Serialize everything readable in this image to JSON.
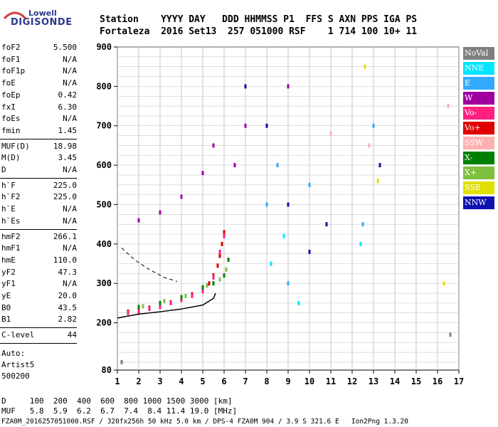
{
  "logo": {
    "line1": "Lowell",
    "line2": "DIGISONDE"
  },
  "header": {
    "line1": "Station    YYYY DAY   DDD HHMMSS P1  FFS S AXN PPS IGA PS",
    "line2": "Fortaleza  2016 Set13  257 051000 RSF    1 714 100 10+ 11"
  },
  "params_a": [
    {
      "k": "foF2",
      "v": "5.500"
    },
    {
      "k": "foF1",
      "v": "N/A"
    },
    {
      "k": "foF1p",
      "v": "N/A"
    },
    {
      "k": "foE",
      "v": "N/A"
    },
    {
      "k": "foEp",
      "v": "0.42"
    },
    {
      "k": "fxI",
      "v": "6.30"
    },
    {
      "k": "foEs",
      "v": "N/A"
    },
    {
      "k": "fmin",
      "v": "1.45"
    }
  ],
  "params_b": [
    {
      "k": "MUF(D)",
      "v": "18.98"
    },
    {
      "k": "M(D)",
      "v": "3.45"
    },
    {
      "k": "D",
      "v": "N/A"
    }
  ],
  "params_c": [
    {
      "k": "h`F",
      "v": "225.0"
    },
    {
      "k": "h`F2",
      "v": "225.0"
    },
    {
      "k": "h`E",
      "v": "N/A"
    },
    {
      "k": "h`Es",
      "v": "N/A"
    }
  ],
  "params_d": [
    {
      "k": "hmF2",
      "v": "266.1"
    },
    {
      "k": "hmF1",
      "v": "N/A"
    },
    {
      "k": "hmE",
      "v": "110.0"
    },
    {
      "k": "yF2",
      "v": "47.3"
    },
    {
      "k": "yF1",
      "v": "N/A"
    },
    {
      "k": "yE",
      "v": "20.0"
    },
    {
      "k": "B0",
      "v": "43.5"
    },
    {
      "k": "B1",
      "v": "2.82"
    }
  ],
  "clevel": {
    "k": "C-level",
    "v": "44"
  },
  "auto": {
    "line1": "Auto:",
    "line2": "Artist5",
    "line3": "500200"
  },
  "legend": [
    {
      "label": "NoVal",
      "color": "#808080"
    },
    {
      "label": "NNE",
      "color": "#00e5ff"
    },
    {
      "label": "E",
      "color": "#33aaff"
    },
    {
      "label": "W",
      "color": "#a000a0"
    },
    {
      "label": "Vo-",
      "color": "#ff2080"
    },
    {
      "label": "Vo+",
      "color": "#e00000"
    },
    {
      "label": "SSW",
      "color": "#ffb0b0"
    },
    {
      "label": "X-",
      "color": "#008000"
    },
    {
      "label": "X+",
      "color": "#80c040"
    },
    {
      "label": "SSE",
      "color": "#e0e000"
    },
    {
      "label": "NNW",
      "color": "#1010b0"
    }
  ],
  "footer": {
    "line1": "D     100  200  400  600  800 1000 1500 3000 [km]",
    "line2": "MUF   5.8  5.9  6.2  6.7  7.4  8.4 11.4 19.0 [MHz]",
    "line3": "FZA0M_2016257051000.RSF / 320fx256h 50 kHz 5.0 km / DPS-4 FZA0M 904 / 3.9 S 321.6 E   Ion2Png 1.3.20"
  },
  "chart_data": {
    "type": "scatter",
    "title": "",
    "xlabel": "",
    "ylabel": "",
    "xlim": [
      1,
      17
    ],
    "ylim": [
      80,
      900
    ],
    "xticks": [
      1,
      2,
      3,
      4,
      5,
      6,
      7,
      8,
      9,
      10,
      11,
      12,
      13,
      14,
      15,
      16,
      17
    ],
    "yticks": [
      80,
      200,
      300,
      400,
      500,
      600,
      700,
      800,
      900
    ],
    "grid": true,
    "legend_position": "right",
    "series": [
      {
        "legend": "Vo+",
        "color": "#e00000",
        "points": [
          [
            1.5,
            228
          ],
          [
            2,
            232
          ],
          [
            2.5,
            238
          ],
          [
            3,
            245
          ],
          [
            3.5,
            252
          ],
          [
            4,
            262
          ],
          [
            4.5,
            272
          ],
          [
            5,
            285
          ],
          [
            5.3,
            300
          ],
          [
            5.5,
            320
          ],
          [
            5.7,
            345
          ],
          [
            5.8,
            370
          ],
          [
            5.9,
            400
          ],
          [
            6,
            430
          ]
        ]
      },
      {
        "legend": "Vo-",
        "color": "#ff2080",
        "points": [
          [
            1.5,
            225
          ],
          [
            2,
            228
          ],
          [
            2.5,
            235
          ],
          [
            3,
            240
          ],
          [
            3.5,
            250
          ],
          [
            4,
            258
          ],
          [
            4.5,
            268
          ],
          [
            5,
            280
          ],
          [
            5.5,
            315
          ],
          [
            5.8,
            380
          ],
          [
            6,
            420
          ]
        ]
      },
      {
        "legend": "X-",
        "color": "#008000",
        "points": [
          [
            2,
            240
          ],
          [
            3,
            250
          ],
          [
            4,
            265
          ],
          [
            5,
            290
          ],
          [
            5.5,
            300
          ],
          [
            6,
            320
          ],
          [
            6.2,
            360
          ]
        ]
      },
      {
        "legend": "X+",
        "color": "#80c040",
        "points": [
          [
            2.2,
            242
          ],
          [
            3.2,
            255
          ],
          [
            4.2,
            268
          ],
          [
            5.2,
            295
          ],
          [
            5.8,
            310
          ],
          [
            6.1,
            335
          ]
        ]
      },
      {
        "legend": "W",
        "color": "#a000a0",
        "points": [
          [
            2,
            460
          ],
          [
            3,
            480
          ],
          [
            4,
            520
          ],
          [
            5,
            580
          ],
          [
            5.5,
            650
          ],
          [
            6.5,
            600
          ],
          [
            7,
            700
          ],
          [
            9,
            800
          ]
        ]
      },
      {
        "legend": "E",
        "color": "#33aaff",
        "points": [
          [
            8,
            500
          ],
          [
            8.5,
            600
          ],
          [
            9,
            300
          ],
          [
            10,
            550
          ],
          [
            12.5,
            450
          ],
          [
            13,
            700
          ]
        ]
      },
      {
        "legend": "NNE",
        "color": "#00e5ff",
        "points": [
          [
            8.2,
            350
          ],
          [
            8.8,
            420
          ],
          [
            9.5,
            250
          ],
          [
            12.4,
            400
          ]
        ]
      },
      {
        "legend": "NNW",
        "color": "#1010b0",
        "points": [
          [
            7,
            800
          ],
          [
            8,
            700
          ],
          [
            9,
            500
          ],
          [
            10,
            380
          ],
          [
            10.8,
            450
          ],
          [
            13.3,
            600
          ]
        ]
      },
      {
        "legend": "SSE",
        "color": "#e0e000",
        "points": [
          [
            12.6,
            850
          ],
          [
            13.2,
            560
          ],
          [
            16.3,
            300
          ]
        ]
      },
      {
        "legend": "SSW",
        "color": "#ffb0b0",
        "points": [
          [
            11,
            680
          ],
          [
            12.8,
            650
          ],
          [
            16.5,
            750
          ]
        ]
      },
      {
        "legend": "NoVal",
        "color": "#808080",
        "points": [
          [
            1.2,
            100
          ],
          [
            16.6,
            170
          ]
        ]
      }
    ],
    "profile_curve": [
      [
        1,
        212
      ],
      [
        2,
        222
      ],
      [
        3,
        228
      ],
      [
        4,
        235
      ],
      [
        5,
        245
      ],
      [
        5.5,
        262
      ],
      [
        5.6,
        275
      ]
    ],
    "dashed_curve": [
      [
        1.2,
        390
      ],
      [
        1.8,
        360
      ],
      [
        2.5,
        335
      ],
      [
        3.2,
        315
      ],
      [
        3.8,
        305
      ]
    ]
  }
}
